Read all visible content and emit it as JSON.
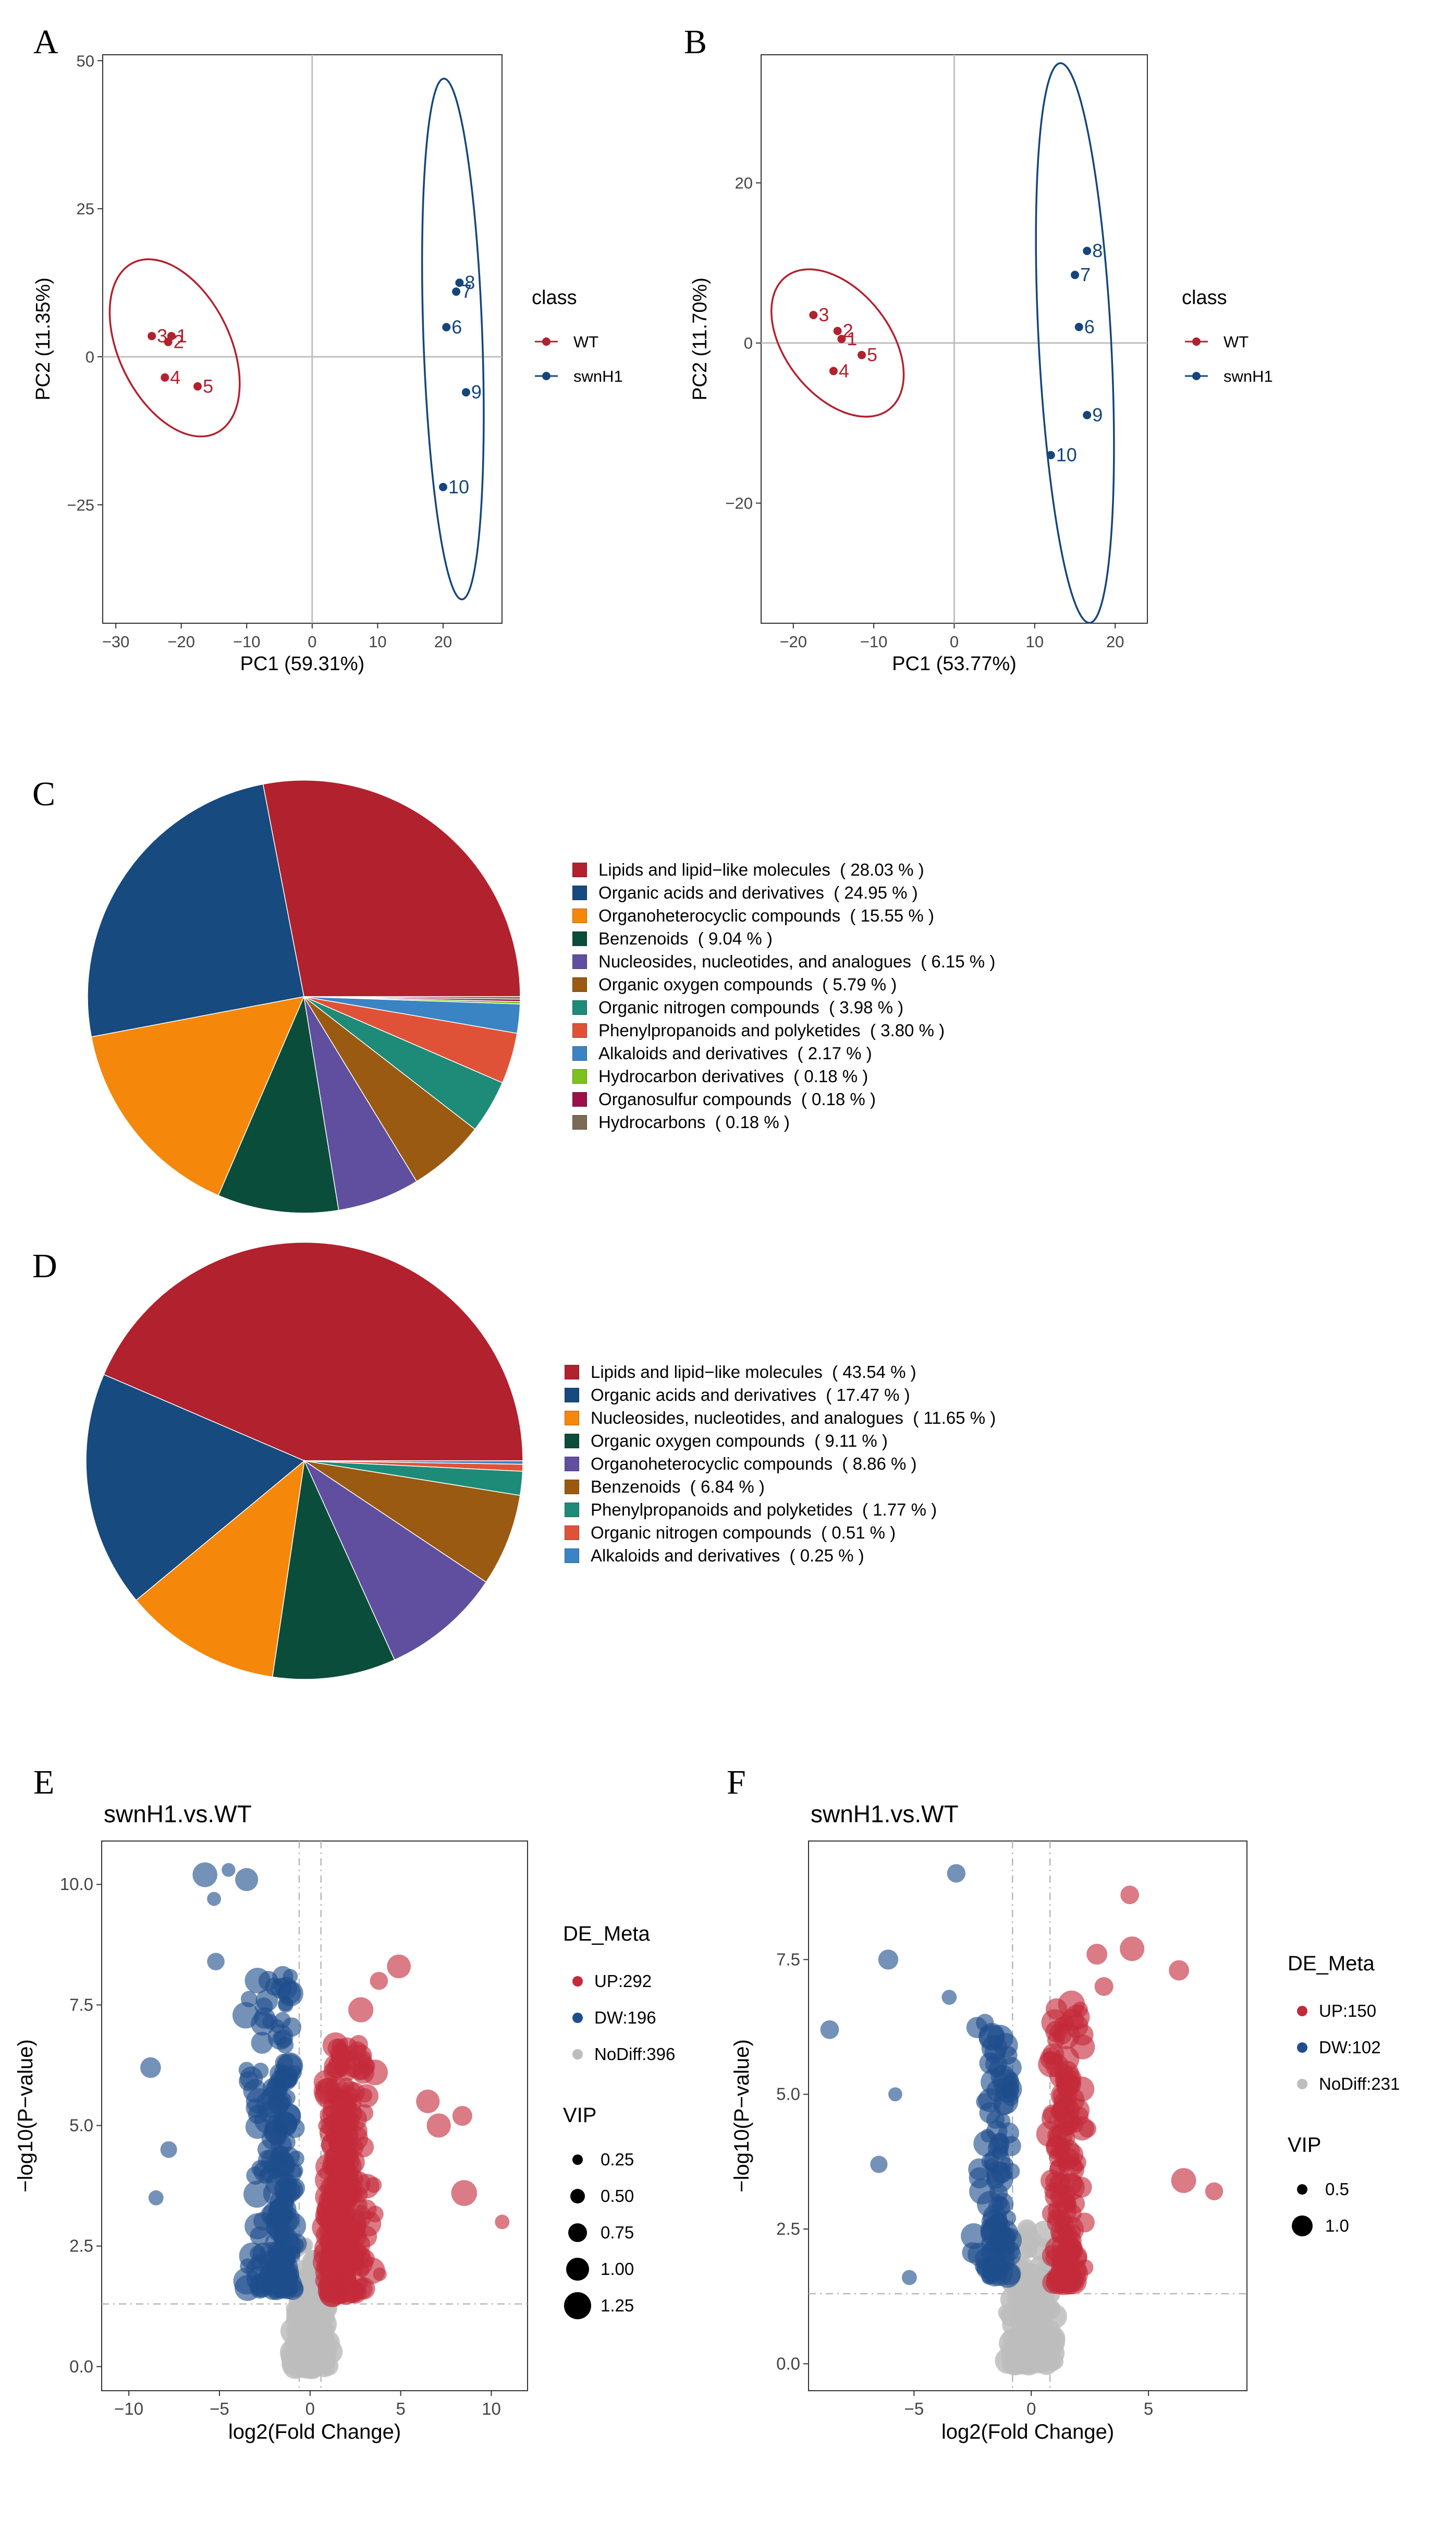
{
  "panels": {
    "a": "A",
    "b": "B",
    "c": "C",
    "d": "D",
    "e": "E",
    "f": "F"
  },
  "colors": {
    "wt": "#b2212e",
    "swn": "#15457b",
    "up": "#c42a3a",
    "dw": "#1f4e8c",
    "nodiff": "#bdbdbd"
  },
  "chart_data": [
    {
      "id": "A",
      "type": "scatter",
      "xlabel": "PC1 (59.31%)",
      "ylabel": "PC2 (11.35%)",
      "xlim": [
        -32,
        29
      ],
      "ylim": [
        -45,
        51
      ],
      "xticks": [
        -30,
        -20,
        -10,
        0,
        10,
        20
      ],
      "yticks": [
        -25,
        0,
        25,
        50
      ],
      "legend_title": "class",
      "series": [
        {
          "name": "WT",
          "points": [
            {
              "x": -24.5,
              "y": 3.5,
              "label": "3"
            },
            {
              "x": -21.5,
              "y": 3.5,
              "label": "1"
            },
            {
              "x": -22,
              "y": 2.5,
              "label": "2"
            },
            {
              "x": -22.5,
              "y": -3.5,
              "label": "4"
            },
            {
              "x": -17.5,
              "y": -5,
              "label": "5"
            }
          ],
          "ellipse": {
            "cx": -21,
            "cy": 1.5,
            "rx": 8.5,
            "ry": 16,
            "angle": -26
          }
        },
        {
          "name": "swnH1",
          "points": [
            {
              "x": 22.5,
              "y": 12.5,
              "label": "8"
            },
            {
              "x": 22,
              "y": 11,
              "label": "7"
            },
            {
              "x": 20.5,
              "y": 5,
              "label": "6"
            },
            {
              "x": 23.5,
              "y": -6,
              "label": "9"
            },
            {
              "x": 20,
              "y": -22,
              "label": "10"
            }
          ],
          "ellipse": {
            "cx": 21.5,
            "cy": 3,
            "rx": 4.5,
            "ry": 44,
            "angle": -2
          }
        }
      ]
    },
    {
      "id": "B",
      "type": "scatter",
      "xlabel": "PC1 (53.77%)",
      "ylabel": "PC2 (11.70%)",
      "xlim": [
        -24,
        24
      ],
      "ylim": [
        -35,
        36
      ],
      "xticks": [
        -20,
        -10,
        0,
        10,
        20
      ],
      "yticks": [
        -20,
        0,
        20
      ],
      "legend_title": "class",
      "series": [
        {
          "name": "WT",
          "points": [
            {
              "x": -17.5,
              "y": 3.5,
              "label": "3"
            },
            {
              "x": -14.5,
              "y": 1.5,
              "label": "2"
            },
            {
              "x": -14,
              "y": 0.5,
              "label": "1"
            },
            {
              "x": -15,
              "y": -3.5,
              "label": "4"
            },
            {
              "x": -11.5,
              "y": -1.5,
              "label": "5"
            }
          ],
          "ellipse": {
            "cx": -14.5,
            "cy": 0,
            "rx": 6.5,
            "ry": 10.5,
            "angle": -38
          }
        },
        {
          "name": "swnH1",
          "points": [
            {
              "x": 16.5,
              "y": 11.5,
              "label": "8"
            },
            {
              "x": 15,
              "y": 8.5,
              "label": "7"
            },
            {
              "x": 15.5,
              "y": 2,
              "label": "6"
            },
            {
              "x": 16.5,
              "y": -9,
              "label": "9"
            },
            {
              "x": 12,
              "y": -14,
              "label": "10"
            }
          ],
          "ellipse": {
            "cx": 15,
            "cy": 0,
            "rx": 4.5,
            "ry": 35,
            "angle": -3
          }
        }
      ]
    },
    {
      "id": "C",
      "type": "pie",
      "slices": [
        {
          "label": "Lipids and lipid−like molecules",
          "pct_label": "( 28.03 % )",
          "value": 28.03,
          "color": "#b2212e"
        },
        {
          "label": "Organic acids and derivatives",
          "pct_label": "( 24.95 % )",
          "value": 24.95,
          "color": "#174a7e"
        },
        {
          "label": "Organoheterocyclic compounds",
          "pct_label": "( 15.55 % )",
          "value": 15.55,
          "color": "#f5870a"
        },
        {
          "label": "Benzenoids",
          "pct_label": "( 9.04 % )",
          "value": 9.04,
          "color": "#0b4d3b"
        },
        {
          "label": "Nucleosides, nucleotides, and analogues",
          "pct_label": "( 6.15 % )",
          "value": 6.15,
          "color": "#5f4f9e"
        },
        {
          "label": "Organic oxygen compounds",
          "pct_label": "( 5.79 % )",
          "value": 5.79,
          "color": "#9a5a12"
        },
        {
          "label": "Organic nitrogen compounds",
          "pct_label": "( 3.98 % )",
          "value": 3.98,
          "color": "#1e8a78"
        },
        {
          "label": "Phenylpropanoids and polyketides",
          "pct_label": "( 3.80 % )",
          "value": 3.8,
          "color": "#e05238"
        },
        {
          "label": "Alkaloids and derivatives",
          "pct_label": "( 2.17 % )",
          "value": 2.17,
          "color": "#3a84c3"
        },
        {
          "label": "Hydrocarbon derivatives",
          "pct_label": "( 0.18 % )",
          "value": 0.18,
          "color": "#7cc11d"
        },
        {
          "label": "Organosulfur compounds",
          "pct_label": "( 0.18 % )",
          "value": 0.18,
          "color": "#9c0f4a"
        },
        {
          "label": "Hydrocarbons",
          "pct_label": "( 0.18 % )",
          "value": 0.18,
          "color": "#7a6a56"
        }
      ]
    },
    {
      "id": "D",
      "type": "pie",
      "slices": [
        {
          "label": "Lipids and lipid−like molecules",
          "pct_label": "( 43.54 % )",
          "value": 43.54,
          "color": "#b2212e"
        },
        {
          "label": "Organic acids and derivatives",
          "pct_label": "( 17.47 % )",
          "value": 17.47,
          "color": "#174a7e"
        },
        {
          "label": "Nucleosides, nucleotides, and analogues",
          "pct_label": "( 11.65 % )",
          "value": 11.65,
          "color": "#f5870a"
        },
        {
          "label": "Organic oxygen compounds",
          "pct_label": "( 9.11 % )",
          "value": 9.11,
          "color": "#0b4d3b"
        },
        {
          "label": "Organoheterocyclic compounds",
          "pct_label": "( 8.86 % )",
          "value": 8.86,
          "color": "#5f4f9e"
        },
        {
          "label": "Benzenoids",
          "pct_label": "( 6.84 % )",
          "value": 6.84,
          "color": "#9a5a12"
        },
        {
          "label": "Phenylpropanoids and polyketides",
          "pct_label": "( 1.77 % )",
          "value": 1.77,
          "color": "#1e8a78"
        },
        {
          "label": "Organic nitrogen compounds",
          "pct_label": "( 0.51 % )",
          "value": 0.51,
          "color": "#e05238"
        },
        {
          "label": "Alkaloids and derivatives",
          "pct_label": "( 0.25 % )",
          "value": 0.25,
          "color": "#3a84c3"
        }
      ]
    },
    {
      "id": "E",
      "type": "scatter",
      "title": "swnH1.vs.WT",
      "xlabel": "log2(Fold Change)",
      "ylabel": "−log10(P−value)",
      "xlim": [
        -11.5,
        12
      ],
      "ylim": [
        -0.5,
        10.9
      ],
      "xticks": [
        -10,
        -5,
        0,
        5,
        10
      ],
      "yticks": [
        0.0,
        2.5,
        5.0,
        7.5,
        10.0
      ],
      "vlines": [
        -0.6,
        0.6
      ],
      "hline": 1.3,
      "legend_title": "DE_Meta",
      "vip_title": "VIP",
      "groups": [
        {
          "label": "UP:292",
          "count": 292
        },
        {
          "label": "DW:196",
          "count": 196
        },
        {
          "label": "NoDiff:396",
          "count": 396
        }
      ],
      "vip_levels": [
        0.25,
        0.5,
        0.75,
        1.0,
        1.25
      ]
    },
    {
      "id": "F",
      "type": "scatter",
      "title": "swnH1.vs.WT",
      "xlabel": "log2(Fold Change)",
      "ylabel": "−log10(P−value)",
      "xlim": [
        -9.5,
        9.2
      ],
      "ylim": [
        -0.5,
        9.7
      ],
      "xticks": [
        -5,
        0,
        5
      ],
      "yticks": [
        0.0,
        2.5,
        5.0,
        7.5
      ],
      "vlines": [
        -0.8,
        0.8
      ],
      "hline": 1.3,
      "legend_title": "DE_Meta",
      "vip_title": "VIP",
      "groups": [
        {
          "label": "UP:150",
          "count": 150
        },
        {
          "label": "DW:102",
          "count": 102
        },
        {
          "label": "NoDiff:231",
          "count": 231
        }
      ],
      "vip_levels": [
        0.5,
        1.0
      ]
    }
  ]
}
